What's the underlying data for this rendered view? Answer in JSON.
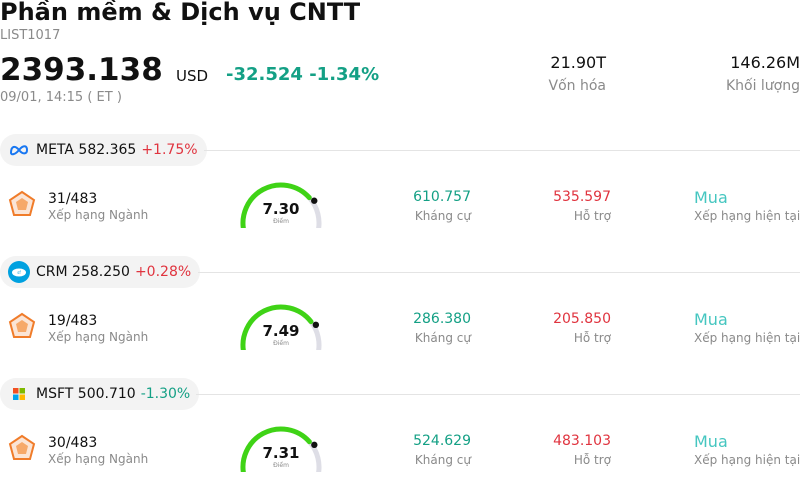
{
  "header": {
    "title": "Phần mềm & Dịch vụ CNTT",
    "code": "LIST1017",
    "price": "2393.138",
    "currency": "USD",
    "change": "-32.524 -1.34%",
    "time": "09/01, 14:15 ( ET )",
    "market_cap": {
      "value": "21.90T",
      "label": "Vốn hóa"
    },
    "volume": {
      "value": "146.26M",
      "label": "Khối lượng"
    }
  },
  "stocks": [
    {
      "ticker": "META",
      "price": "582.365",
      "pct": "+1.75%",
      "pct_color": "#e0343f",
      "logo_icon": "meta-logo-icon",
      "rank": "31/483",
      "rank_label": "Xếp hạng Ngành",
      "score": "7.30",
      "score_value": 7.3,
      "score_label": "Điểm",
      "resistance": "610.757",
      "resistance_label": "Kháng cự",
      "support": "535.597",
      "support_label": "Hỗ trợ",
      "rating": "Mua",
      "rating_label": "Xếp hạng hiện tại"
    },
    {
      "ticker": "CRM",
      "price": "258.250",
      "pct": "+0.28%",
      "pct_color": "#e0343f",
      "logo_icon": "salesforce-logo-icon",
      "rank": "19/483",
      "rank_label": "Xếp hạng Ngành",
      "score": "7.49",
      "score_value": 7.49,
      "score_label": "Điểm",
      "resistance": "286.380",
      "resistance_label": "Kháng cự",
      "support": "205.850",
      "support_label": "Hỗ trợ",
      "rating": "Mua",
      "rating_label": "Xếp hạng hiện tại"
    },
    {
      "ticker": "MSFT",
      "price": "500.710",
      "pct": "-1.30%",
      "pct_color": "#14a085",
      "logo_icon": "microsoft-logo-icon",
      "rank": "30/483",
      "rank_label": "Xếp hạng Ngành",
      "score": "7.31",
      "score_value": 7.31,
      "score_label": "Điểm",
      "resistance": "524.629",
      "resistance_label": "Kháng cự",
      "support": "483.103",
      "support_label": "Hỗ trợ",
      "rating": "Mua",
      "rating_label": "Xếp hạng hiện tại"
    }
  ],
  "colors": {
    "up": "#e0343f",
    "down": "#14a085",
    "gauge": "#3fd316",
    "rating": "#45c6c0"
  }
}
